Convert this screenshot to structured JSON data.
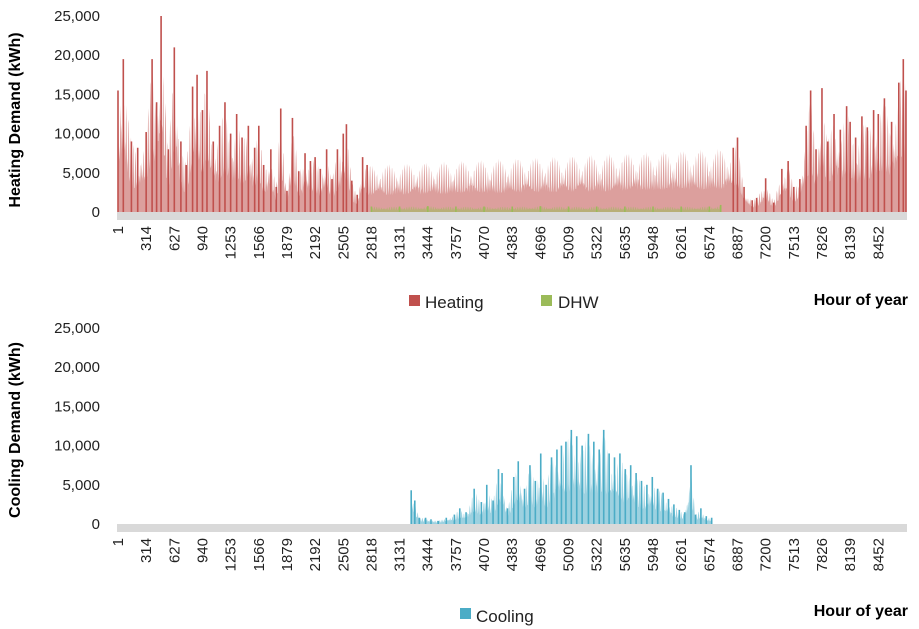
{
  "chart_data": [
    {
      "type": "bar",
      "ylabel": "Heating Demand (kWh)",
      "xlabel": "Hour of year",
      "ylim": [
        0,
        25000
      ],
      "yticks": [
        "25,000",
        "20,000",
        "15,000",
        "10,000",
        "5,000",
        "0"
      ],
      "x_ticks": [
        "1",
        "314",
        "627",
        "940",
        "1253",
        "1566",
        "1879",
        "2192",
        "2505",
        "2818",
        "3131",
        "3444",
        "3757",
        "4070",
        "4383",
        "4696",
        "5009",
        "5322",
        "5635",
        "5948",
        "6261",
        "6574",
        "6887",
        "7200",
        "7513",
        "7826",
        "8139",
        "8452"
      ],
      "legend": [
        "Heating",
        "DHW"
      ],
      "colors": {
        "Heating": "#c0504d",
        "DHW": "#9bbb59"
      },
      "series": [
        {
          "name": "Heating",
          "points": [
            [
              1,
              15500
            ],
            [
              60,
              19500
            ],
            [
              150,
              9000
            ],
            [
              220,
              8200
            ],
            [
              314,
              10200
            ],
            [
              380,
              19500
            ],
            [
              430,
              14000
            ],
            [
              480,
              25000
            ],
            [
              560,
              8000
            ],
            [
              627,
              21000
            ],
            [
              700,
              9000
            ],
            [
              760,
              6000
            ],
            [
              830,
              16000
            ],
            [
              880,
              17500
            ],
            [
              940,
              13000
            ],
            [
              990,
              18000
            ],
            [
              1060,
              9000
            ],
            [
              1130,
              11000
            ],
            [
              1190,
              14000
            ],
            [
              1253,
              10000
            ],
            [
              1320,
              12500
            ],
            [
              1380,
              9500
            ],
            [
              1450,
              11000
            ],
            [
              1520,
              8200
            ],
            [
              1566,
              11000
            ],
            [
              1620,
              6000
            ],
            [
              1700,
              8000
            ],
            [
              1760,
              3200
            ],
            [
              1810,
              13200
            ],
            [
              1879,
              2700
            ],
            [
              1940,
              12000
            ],
            [
              2010,
              5200
            ],
            [
              2080,
              7500
            ],
            [
              2140,
              6500
            ],
            [
              2192,
              7000
            ],
            [
              2250,
              5500
            ],
            [
              2320,
              8000
            ],
            [
              2380,
              4200
            ],
            [
              2440,
              8000
            ],
            [
              2505,
              10000
            ],
            [
              2540,
              11200
            ],
            [
              2600,
              4000
            ],
            [
              2660,
              2200
            ],
            [
              2720,
              7000
            ],
            [
              2770,
              6000
            ],
            [
              6840,
              8200
            ],
            [
              6887,
              9500
            ],
            [
              6960,
              3200
            ],
            [
              7050,
              1500
            ],
            [
              7100,
              1800
            ],
            [
              7200,
              4300
            ],
            [
              7290,
              1200
            ],
            [
              7380,
              5500
            ],
            [
              7450,
              6500
            ],
            [
              7513,
              3200
            ],
            [
              7580,
              4200
            ],
            [
              7650,
              11000
            ],
            [
              7700,
              15500
            ],
            [
              7760,
              8000
            ],
            [
              7826,
              15800
            ],
            [
              7890,
              9000
            ],
            [
              7960,
              12500
            ],
            [
              8030,
              10500
            ],
            [
              8100,
              13500
            ],
            [
              8139,
              11500
            ],
            [
              8200,
              9500
            ],
            [
              8270,
              12200
            ],
            [
              8330,
              10800
            ],
            [
              8400,
              13000
            ],
            [
              8452,
              12500
            ],
            [
              8520,
              14500
            ],
            [
              8600,
              11500
            ],
            [
              8680,
              16500
            ],
            [
              8730,
              19500
            ],
            [
              8760,
              15500
            ]
          ]
        },
        {
          "name": "DHW",
          "points": [
            [
              2818,
              700
            ],
            [
              3131,
              700
            ],
            [
              3444,
              750
            ],
            [
              3757,
              700
            ],
            [
              4070,
              700
            ],
            [
              4383,
              700
            ],
            [
              4696,
              750
            ],
            [
              5009,
              700
            ],
            [
              5322,
              700
            ],
            [
              5635,
              700
            ],
            [
              5948,
              700
            ],
            [
              6261,
              700
            ],
            [
              6574,
              700
            ],
            [
              6700,
              900
            ]
          ]
        }
      ]
    },
    {
      "type": "bar",
      "ylabel": "Cooling Demand (kWh)",
      "xlabel": "Hour of year",
      "ylim": [
        0,
        25000
      ],
      "yticks": [
        "25,000",
        "20,000",
        "15,000",
        "10,000",
        "5,000",
        "0"
      ],
      "x_ticks": [
        "1",
        "314",
        "627",
        "940",
        "1253",
        "1566",
        "1879",
        "2192",
        "2505",
        "2818",
        "3131",
        "3444",
        "3757",
        "4070",
        "4383",
        "4696",
        "5009",
        "5322",
        "5635",
        "5948",
        "6261",
        "6574",
        "6887",
        "7200",
        "7513",
        "7826",
        "8139",
        "8452"
      ],
      "legend": [
        "Cooling"
      ],
      "colors": {
        "Cooling": "#4bacc6"
      },
      "series": [
        {
          "name": "Cooling",
          "points": [
            [
              3260,
              4300
            ],
            [
              3300,
              3000
            ],
            [
              3350,
              800
            ],
            [
              3420,
              800
            ],
            [
              3480,
              600
            ],
            [
              3560,
              400
            ],
            [
              3650,
              800
            ],
            [
              3740,
              1200
            ],
            [
              3800,
              2000
            ],
            [
              3870,
              1500
            ],
            [
              3960,
              4500
            ],
            [
              4040,
              2800
            ],
            [
              4100,
              5000
            ],
            [
              4170,
              3000
            ],
            [
              4230,
              7000
            ],
            [
              4270,
              6500
            ],
            [
              4330,
              2000
            ],
            [
              4400,
              6000
            ],
            [
              4450,
              8000
            ],
            [
              4520,
              4500
            ],
            [
              4580,
              7500
            ],
            [
              4640,
              5500
            ],
            [
              4700,
              9000
            ],
            [
              4760,
              5000
            ],
            [
              4820,
              8500
            ],
            [
              4880,
              9500
            ],
            [
              4930,
              10000
            ],
            [
              4980,
              10500
            ],
            [
              5040,
              12000
            ],
            [
              5100,
              11200
            ],
            [
              5160,
              10000
            ],
            [
              5230,
              11500
            ],
            [
              5290,
              10500
            ],
            [
              5350,
              9500
            ],
            [
              5400,
              12000
            ],
            [
              5460,
              9000
            ],
            [
              5520,
              8500
            ],
            [
              5580,
              9000
            ],
            [
              5640,
              7000
            ],
            [
              5700,
              7500
            ],
            [
              5760,
              6500
            ],
            [
              5820,
              5500
            ],
            [
              5880,
              5000
            ],
            [
              5940,
              6000
            ],
            [
              6000,
              4500
            ],
            [
              6060,
              4000
            ],
            [
              6120,
              3200
            ],
            [
              6180,
              2500
            ],
            [
              6240,
              1800
            ],
            [
              6300,
              1500
            ],
            [
              6370,
              7500
            ],
            [
              6420,
              1200
            ],
            [
              6480,
              2000
            ],
            [
              6540,
              1000
            ],
            [
              6600,
              800
            ]
          ]
        }
      ]
    }
  ]
}
